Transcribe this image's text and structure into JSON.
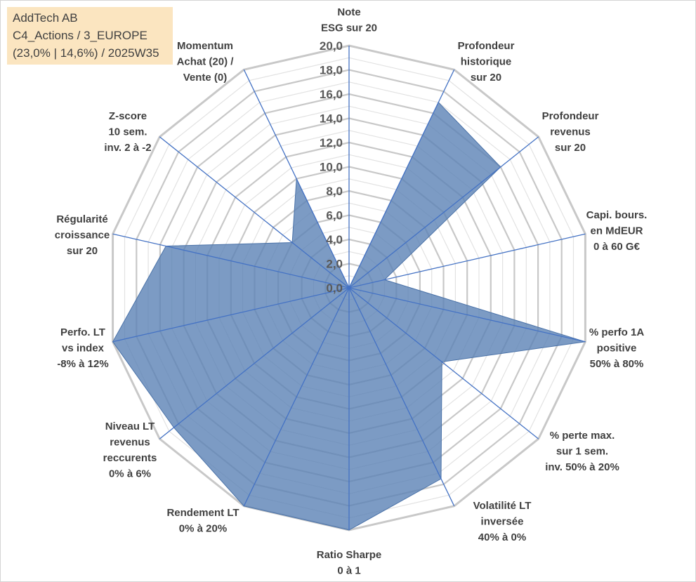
{
  "info_box": {
    "line1": "AddTech AB",
    "line2": "C4_Actions / 3_EUROPE",
    "line3": "(23,0% | 14,6%) / 2025W35"
  },
  "chart_data": {
    "type": "radar",
    "title": "",
    "rmax": 20,
    "ticks": [
      "0,0",
      "2,0",
      "4,0",
      "6,0",
      "8,0",
      "10,0",
      "12,0",
      "14,0",
      "16,0",
      "18,0",
      "20,0"
    ],
    "tick_values": [
      0,
      2,
      4,
      6,
      8,
      10,
      12,
      14,
      16,
      18,
      20
    ],
    "grid": true,
    "legend": "none",
    "colors": {
      "fill": "#5b82b5",
      "axis": "#4472c4",
      "grid_major": "#c8c8c8",
      "grid_minor": "#e2e2e2"
    },
    "categories": [
      {
        "lines": [
          "Note",
          "ESG sur 20"
        ]
      },
      {
        "lines": [
          "Profondeur",
          "historique",
          "sur 20"
        ]
      },
      {
        "lines": [
          "Profondeur",
          "revenus",
          "sur 20"
        ]
      },
      {
        "lines": [
          "Capi. bours.",
          "en MdEUR",
          "0 à 60 G€"
        ]
      },
      {
        "lines": [
          "% perfo 1A",
          "positive",
          "50% à 80%"
        ]
      },
      {
        "lines": [
          "% perte max.",
          "sur 1 sem.",
          "inv. 50% à 20%"
        ]
      },
      {
        "lines": [
          "Volatilité LT",
          "inversée",
          "40% à 0%"
        ]
      },
      {
        "lines": [
          "Ratio Sharpe",
          "0 à 1"
        ]
      },
      {
        "lines": [
          "Rendement LT",
          "0% à 20%"
        ]
      },
      {
        "lines": [
          "Niveau LT",
          "revenus",
          "reccurents",
          "0% à 6%"
        ]
      },
      {
        "lines": [
          "Perfo. LT",
          "vs index",
          "-8% à 12%"
        ]
      },
      {
        "lines": [
          "Régularité",
          "croissance",
          "sur 20"
        ]
      },
      {
        "lines": [
          "Z-score",
          "10 sem.",
          "inv. 2 à -2"
        ]
      },
      {
        "lines": [
          "Momentum",
          "Achat (20) /",
          "Vente (0)"
        ]
      }
    ],
    "series": [
      {
        "values": [
          0,
          17,
          16,
          3,
          20,
          9.8,
          17.5,
          20,
          20,
          18.5,
          20,
          15.5,
          6,
          10
        ]
      }
    ]
  }
}
